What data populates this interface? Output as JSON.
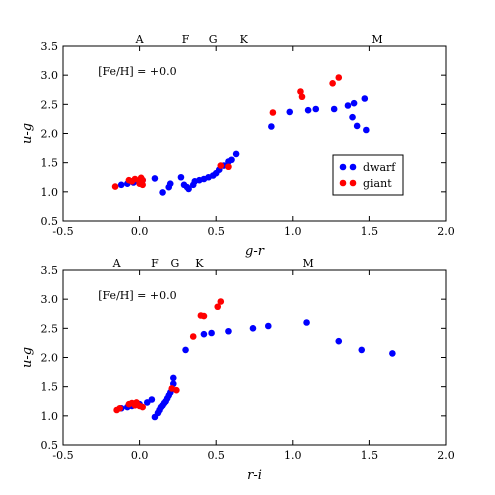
{
  "chart_data": [
    {
      "type": "scatter",
      "xlabel": "g-r",
      "ylabel": "u-g",
      "xlim": [
        -0.5,
        2.0
      ],
      "ylim": [
        0.5,
        3.5
      ],
      "xticks": [
        "-0.5",
        "0.0",
        "0.5",
        "1.0",
        "1.5",
        "2.0"
      ],
      "yticks": [
        "0.5",
        "1.0",
        "1.5",
        "2.0",
        "2.5",
        "3.0",
        "3.5"
      ],
      "annotation": "[Fe/H] = +0.0",
      "legend": "center-right",
      "spectral_types": [
        {
          "label": "A",
          "x": 0.0
        },
        {
          "label": "F",
          "x": 0.3
        },
        {
          "label": "G",
          "x": 0.48
        },
        {
          "label": "K",
          "x": 0.68
        },
        {
          "label": "M",
          "x": 1.55
        }
      ],
      "series": [
        {
          "name": "dwarf",
          "color": "#0000ff",
          "points": [
            [
              -0.12,
              1.12
            ],
            [
              -0.08,
              1.14
            ],
            [
              -0.04,
              1.16
            ],
            [
              -0.01,
              1.19
            ],
            [
              0.02,
              1.2
            ],
            [
              0.1,
              1.23
            ],
            [
              0.15,
              0.99
            ],
            [
              0.19,
              1.08
            ],
            [
              0.2,
              1.14
            ],
            [
              0.27,
              1.25
            ],
            [
              0.29,
              1.12
            ],
            [
              0.31,
              1.08
            ],
            [
              0.32,
              1.05
            ],
            [
              0.35,
              1.12
            ],
            [
              0.36,
              1.18
            ],
            [
              0.39,
              1.2
            ],
            [
              0.42,
              1.22
            ],
            [
              0.45,
              1.25
            ],
            [
              0.48,
              1.28
            ],
            [
              0.5,
              1.32
            ],
            [
              0.52,
              1.38
            ],
            [
              0.55,
              1.45
            ],
            [
              0.58,
              1.52
            ],
            [
              0.6,
              1.55
            ],
            [
              0.63,
              1.65
            ],
            [
              0.86,
              2.12
            ],
            [
              0.98,
              2.37
            ],
            [
              1.1,
              2.4
            ],
            [
              1.15,
              2.42
            ],
            [
              1.27,
              2.42
            ],
            [
              1.36,
              2.48
            ],
            [
              1.4,
              2.52
            ],
            [
              1.39,
              2.28
            ],
            [
              1.42,
              2.13
            ],
            [
              1.47,
              2.6
            ],
            [
              1.48,
              2.06
            ]
          ]
        },
        {
          "name": "giant",
          "color": "#ff0000",
          "points": [
            [
              -0.16,
              1.09
            ],
            [
              -0.07,
              1.2
            ],
            [
              -0.05,
              1.18
            ],
            [
              -0.03,
              1.22
            ],
            [
              0.0,
              1.18
            ],
            [
              0.01,
              1.24
            ],
            [
              0.02,
              1.2
            ],
            [
              0.0,
              1.14
            ],
            [
              0.02,
              1.12
            ],
            [
              0.53,
              1.45
            ],
            [
              0.58,
              1.43
            ],
            [
              0.87,
              2.36
            ],
            [
              1.05,
              2.72
            ],
            [
              1.06,
              2.63
            ],
            [
              1.26,
              2.86
            ],
            [
              1.3,
              2.96
            ]
          ]
        }
      ]
    },
    {
      "type": "scatter",
      "xlabel": "r-i",
      "ylabel": "u-g",
      "xlim": [
        -0.5,
        2.0
      ],
      "ylim": [
        0.5,
        3.5
      ],
      "xticks": [
        "-0.5",
        "0.0",
        "0.5",
        "1.0",
        "1.5",
        "2.0"
      ],
      "yticks": [
        "0.5",
        "1.0",
        "1.5",
        "2.0",
        "2.5",
        "3.0",
        "3.5"
      ],
      "annotation": "[Fe/H] = +0.0",
      "spectral_types": [
        {
          "label": "A",
          "x": -0.15
        },
        {
          "label": "F",
          "x": 0.1
        },
        {
          "label": "G",
          "x": 0.23
        },
        {
          "label": "K",
          "x": 0.39
        },
        {
          "label": "M",
          "x": 1.1
        }
      ],
      "series": [
        {
          "name": "dwarf",
          "color": "#0000ff",
          "points": [
            [
              -0.12,
              1.13
            ],
            [
              -0.08,
              1.15
            ],
            [
              -0.05,
              1.17
            ],
            [
              -0.02,
              1.19
            ],
            [
              0.0,
              1.2
            ],
            [
              0.05,
              1.23
            ],
            [
              0.08,
              1.28
            ],
            [
              0.1,
              0.98
            ],
            [
              0.12,
              1.05
            ],
            [
              0.13,
              1.1
            ],
            [
              0.14,
              1.15
            ],
            [
              0.15,
              1.18
            ],
            [
              0.16,
              1.22
            ],
            [
              0.17,
              1.25
            ],
            [
              0.18,
              1.3
            ],
            [
              0.19,
              1.35
            ],
            [
              0.2,
              1.4
            ],
            [
              0.21,
              1.45
            ],
            [
              0.22,
              1.55
            ],
            [
              0.22,
              1.65
            ],
            [
              0.3,
              2.13
            ],
            [
              0.42,
              2.4
            ],
            [
              0.47,
              2.42
            ],
            [
              0.58,
              2.45
            ],
            [
              0.74,
              2.5
            ],
            [
              0.84,
              2.54
            ],
            [
              1.09,
              2.6
            ],
            [
              1.3,
              2.28
            ],
            [
              1.45,
              2.13
            ],
            [
              1.65,
              2.07
            ]
          ]
        },
        {
          "name": "giant",
          "color": "#ff0000",
          "points": [
            [
              -0.15,
              1.1
            ],
            [
              -0.13,
              1.13
            ],
            [
              -0.07,
              1.2
            ],
            [
              -0.05,
              1.22
            ],
            [
              -0.03,
              1.18
            ],
            [
              -0.02,
              1.23
            ],
            [
              0.0,
              1.17
            ],
            [
              0.02,
              1.15
            ],
            [
              0.21,
              1.47
            ],
            [
              0.24,
              1.44
            ],
            [
              0.35,
              2.36
            ],
            [
              0.4,
              2.72
            ],
            [
              0.42,
              2.71
            ],
            [
              0.51,
              2.87
            ],
            [
              0.53,
              2.96
            ]
          ]
        }
      ]
    }
  ]
}
